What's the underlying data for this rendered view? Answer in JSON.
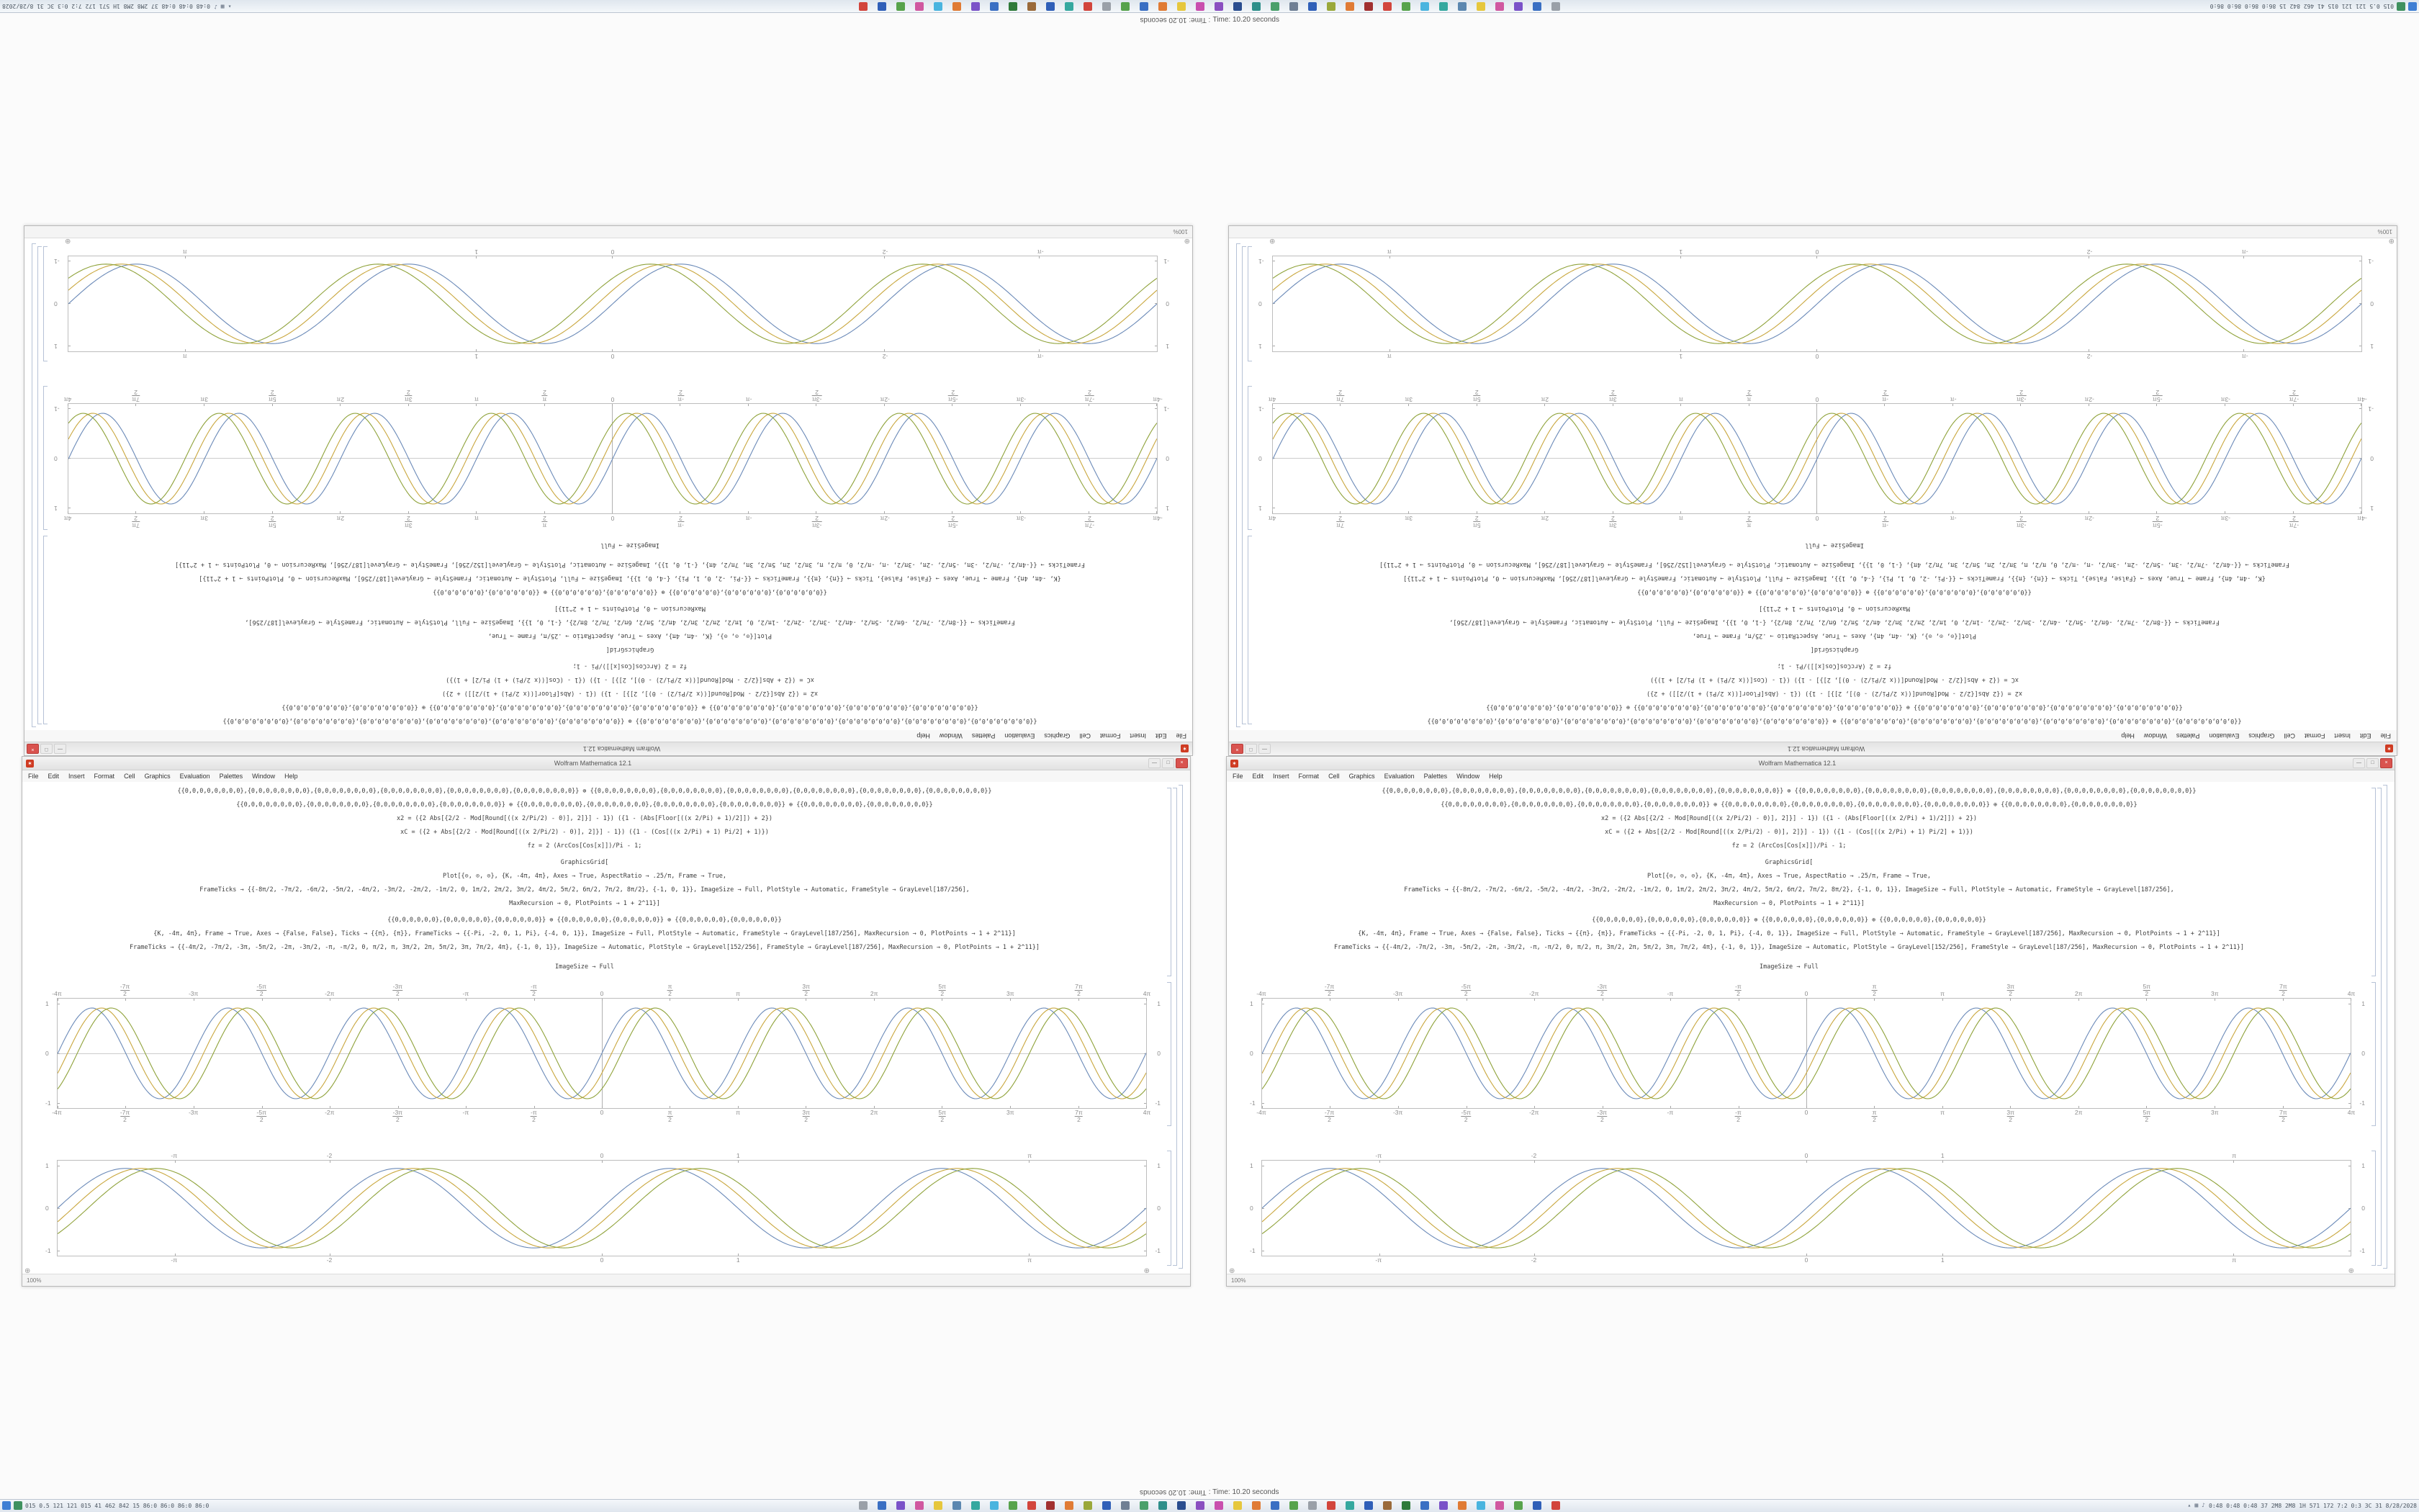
{
  "status_line": {
    "text": "Time: 10.20 seconds",
    "separator": " : "
  },
  "taskbar": {
    "left_text": "015 0.5 121 121 015 41 462 842 15 86:0 86:0 86:0 86:0",
    "tray_text": "0:48 0:48 0:48 37 2M8 2M8 1H 571 172 7:2 0:3 3C 31 8/28/2028",
    "start_color": "#3f7fd4",
    "stats_icon_color": "#3f915f",
    "tray_icon_glyphs": [
      "▴",
      "▦",
      "♪"
    ],
    "app_icon_colors": [
      "#9aa0a8",
      "#3a6fc3",
      "#7a52c8",
      "#d058a0",
      "#e6c73d",
      "#5b87b0",
      "#35a89f",
      "#49b4df",
      "#57a34c",
      "#d2453c",
      "#a13030",
      "#e07b35",
      "#9aa83a",
      "#2f5fb8",
      "#6f7f94",
      "#4aa06a",
      "#2e8f8a",
      "#2a4d8f",
      "#8a4fc0",
      "#c94fae",
      "#e6c73d",
      "#e07b35",
      "#3a6fc3",
      "#57a34c",
      "#9aa0a8",
      "#d2453c",
      "#35a89f",
      "#2f5fb8",
      "#9a6a3a",
      "#2f7a3a",
      "#3a6fc3",
      "#7a52c8",
      "#e07b35",
      "#49b4df",
      "#d058a0",
      "#57a34c",
      "#2f5fb8",
      "#d2453c"
    ]
  },
  "window": {
    "title": "Wolfram Mathematica 12.1",
    "app_icon_glyph": "✶",
    "controls": {
      "minimize": "—",
      "maximize": "□",
      "close": "×"
    },
    "menu": [
      "File",
      "Edit",
      "Insert",
      "Format",
      "Cell",
      "Graphics",
      "Evaluation",
      "Palettes",
      "Window",
      "Help"
    ],
    "zoom": "100%",
    "corner_glyph": "⊕",
    "code_lines": [
      "{{0,0,0,0,0,0,0,0},{0,0,0,0,0,0,0,0},{0,0,0,0,0,0,0,0},{0,0,0,0,0,0,0,0},{0,0,0,0,0,0,0,0},{0,0,0,0,0,0,0,0}} ⊕ {{0,0,0,0,0,0,0,0},{0,0,0,0,0,0,0,0},{0,0,0,0,0,0,0,0},{0,0,0,0,0,0,0,0},{0,0,0,0,0,0,0,0},{0,0,0,0,0,0,0,0}}",
      "{{0,0,0,0,0,0,0,0},{0,0,0,0,0,0,0,0},{0,0,0,0,0,0,0,0},{0,0,0,0,0,0,0,0}} ⊕ {{0,0,0,0,0,0,0,0},{0,0,0,0,0,0,0,0},{0,0,0,0,0,0,0,0},{0,0,0,0,0,0,0,0}} ⊕ {{0,0,0,0,0,0,0,0},{0,0,0,0,0,0,0,0}}",
      "x2 = ({2 Abs[{2/2 - Mod[Round[((x 2/Pi/2) - 0)], 2]}] - 1}) ({1 - (Abs[Floor[((x 2/Pi) + 1)/2]]) + 2})",
      "xC = ({2 + Abs[{2/2 - Mod[Round[((x 2/Pi/2) - 0)], 2]}] - 1}) ({1 - (Cos[((x 2/Pi) + 1) Pi/2] + 1)})",
      "fz = 2 (ArcCos[Cos[x]])/Pi - 1;",
      "GraphicsGrid[",
      "Plot[{⊙, ⊙, ⊙}, {K, -4π, 4π}, Axes → True, AspectRatio → .25/π, Frame → True,",
      "FrameTicks → {{-8π/2, -7π/2, -6π/2, -5π/2, -4π/2, -3π/2, -2π/2, -1π/2, 0, 1π/2, 2π/2, 3π/2, 4π/2, 5π/2, 6π/2, 7π/2, 8π/2}, {-1, 0, 1}}, ImageSize → Full, PlotStyle → Automatic, FrameStyle → GrayLevel[187/256],",
      "MaxRecursion → 0, PlotPoints → 1 + 2^11}]",
      "{{0,0,0,0,0,0},{0,0,0,0,0,0},{0,0,0,0,0,0}} ⊕ {{0,0,0,0,0,0},{0,0,0,0,0,0}} ⊕ {{0,0,0,0,0,0},{0,0,0,0,0,0}}",
      "{K, -4π, 4π}, Frame → True, Axes → {False, False}, Ticks → {{π}, {π}}, FrameTicks → {{-Pi, -2, 0, 1, Pi}, {-4, 0, 1}}, ImageSize → Full, PlotStyle → Automatic, FrameStyle → GrayLevel[187/256], MaxRecursion → 0, PlotPoints → 1 + 2^11}]",
      "FrameTicks → {{-4π/2, -7π/2, -3π, -5π/2, -2π, -3π/2, -π, -π/2, 0, π/2, π, 3π/2, 2π, 5π/2, 3π, 7π/2, 4π}, {-1, 0, 1}}, ImageSize → Automatic, PlotStyle → GrayLevel[152/256], FrameStyle → GrayLevel[187/256], MaxRecursion → 0, PlotPoints → 1 + 2^11}]",
      "ImageSize → Full"
    ]
  },
  "chart_data": [
    {
      "type": "line",
      "title": "",
      "x_range": [
        -12.57,
        12.57
      ],
      "y_range": [
        -1,
        1
      ],
      "frame": true,
      "axes": true,
      "series": [
        {
          "name": "sin-2x",
          "f": "sin(2x)",
          "color": "#6b8ab8",
          "k": 2,
          "phase": 0,
          "amp": 0.9
        },
        {
          "name": "sin-2x-shift1",
          "f": "sin(2x - 0.45)",
          "color": "#c9a73e",
          "k": 2,
          "phase": -0.45,
          "amp": 0.9
        },
        {
          "name": "sin-2x-shift2",
          "f": "sin(2x - 0.9)",
          "color": "#8fa23a",
          "k": 2,
          "phase": -0.9,
          "amp": 0.9
        }
      ],
      "x_ticks": [
        {
          "v": -12.57,
          "t": "-4π"
        },
        {
          "v": -11.0,
          "t": "-7π/2",
          "frac": [
            "-7π",
            "2"
          ]
        },
        {
          "v": -9.42,
          "t": "-3π"
        },
        {
          "v": -7.85,
          "t": "-5π/2",
          "frac": [
            "-5π",
            "2"
          ]
        },
        {
          "v": -6.28,
          "t": "-2π"
        },
        {
          "v": -4.71,
          "t": "-3π/2",
          "frac": [
            "-3π",
            "2"
          ]
        },
        {
          "v": -3.14,
          "t": "-π"
        },
        {
          "v": -1.57,
          "t": "-π/2",
          "frac": [
            "-π",
            "2"
          ]
        },
        {
          "v": 0,
          "t": "0"
        },
        {
          "v": 1.57,
          "t": "π/2",
          "frac": [
            "π",
            "2"
          ]
        },
        {
          "v": 3.14,
          "t": "π"
        },
        {
          "v": 4.71,
          "t": "3π/2",
          "frac": [
            "3π",
            "2"
          ]
        },
        {
          "v": 6.28,
          "t": "2π"
        },
        {
          "v": 7.85,
          "t": "5π/2",
          "frac": [
            "5π",
            "2"
          ]
        },
        {
          "v": 9.42,
          "t": "3π"
        },
        {
          "v": 11.0,
          "t": "7π/2",
          "frac": [
            "7π",
            "2"
          ]
        },
        {
          "v": 12.57,
          "t": "4π"
        }
      ],
      "y_ticks": [
        {
          "v": 1,
          "t": "1"
        },
        {
          "v": 0,
          "t": "0"
        },
        {
          "v": -1,
          "t": "-1"
        }
      ]
    },
    {
      "type": "line",
      "title": "",
      "x_range": [
        -4,
        4
      ],
      "y_range": [
        -1,
        1
      ],
      "frame": true,
      "axes": false,
      "series": [
        {
          "name": "sin-pix",
          "f": "sin(πx)",
          "color": "#6b8ab8",
          "k": 3.1416,
          "phase": 0,
          "amp": 0.92
        },
        {
          "name": "sin-pix-shift1",
          "f": "sin(πx - 0.35)",
          "color": "#c9a73e",
          "k": 3.1416,
          "phase": -0.35,
          "amp": 0.92
        },
        {
          "name": "sin-pix-shift2",
          "f": "sin(πx - 0.7)",
          "color": "#8fa23a",
          "k": 3.1416,
          "phase": -0.7,
          "amp": 0.92
        }
      ],
      "x_ticks": [
        {
          "v": -3.14,
          "t": "-π"
        },
        {
          "v": -2,
          "t": "-2"
        },
        {
          "v": 0,
          "t": "0"
        },
        {
          "v": 1,
          "t": "1"
        },
        {
          "v": 3.14,
          "t": "π"
        }
      ],
      "y_ticks": [
        {
          "v": 1,
          "t": "1"
        },
        {
          "v": 0,
          "t": "0"
        },
        {
          "v": -1,
          "t": "-1"
        }
      ]
    }
  ]
}
